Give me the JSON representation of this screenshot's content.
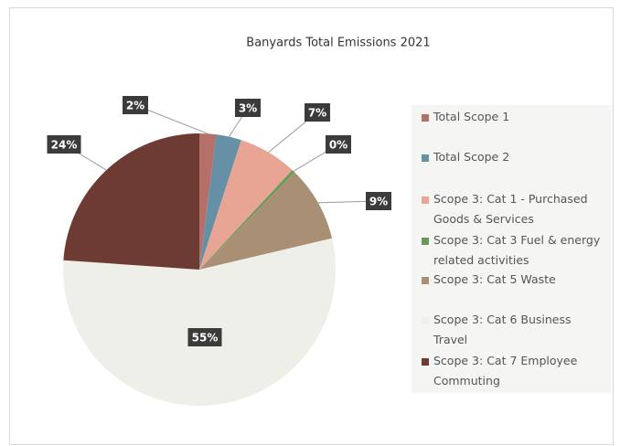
{
  "chart_data": {
    "type": "pie",
    "title": "Banyards Total Emissions 2021",
    "categories": [
      "Total Scope 1",
      "Total Scope 2",
      "Scope 3: Cat 1 - Purchased Goods & Services",
      "Scope 3: Cat 3 Fuel & energy related activities",
      "Scope 3: Cat 5 Waste",
      "Scope 3: Cat 6 Business Travel",
      "Scope 3: Cat 7 Employee Commuting"
    ],
    "values": [
      2,
      3,
      7,
      0.4,
      9,
      55,
      24
    ],
    "value_labels": [
      "2%",
      "3%",
      "7%",
      "0%",
      "9%",
      "55%",
      "24%"
    ],
    "colors": [
      "#b5706a",
      "#6690a6",
      "#e9a594",
      "#6a9a5a",
      "#a98f73",
      "#efefe9",
      "#6e3b33"
    ],
    "legend": "right"
  }
}
